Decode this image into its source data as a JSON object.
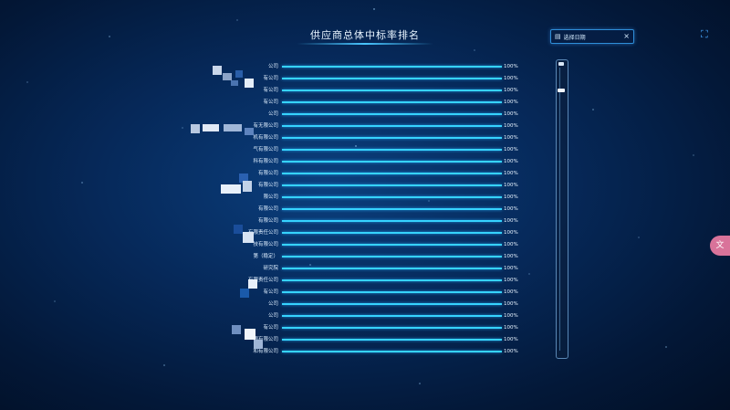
{
  "chart_data": {
    "type": "bar",
    "orientation": "horizontal",
    "title": "供应商总体中标率排名",
    "categories": [
      "公司",
      "有公司",
      "有公司",
      "有公司",
      "公司",
      "有无限公司",
      "机有限公司",
      "气有限公司",
      "科有限公司",
      "有限公司",
      "有限公司",
      "限公司",
      "有限公司",
      "有限公司",
      "有限责任公司",
      "技有限公司",
      "第（稳定）",
      "研究院",
      "有限责任公司",
      "有公司",
      "公司",
      "公司",
      "有公司",
      "限有限公司",
      "和有限公司"
    ],
    "values": [
      100,
      100,
      100,
      100,
      100,
      100,
      100,
      100,
      100,
      100,
      100,
      100,
      100,
      100,
      100,
      100,
      100,
      100,
      100,
      100,
      100,
      100,
      100,
      100,
      100
    ],
    "value_labels": [
      "100%",
      "100%",
      "100%",
      "100%",
      "100%",
      "100%",
      "100%",
      "100%",
      "100%",
      "100%",
      "100%",
      "100%",
      "100%",
      "100%",
      "100%",
      "100%",
      "100%",
      "100%",
      "100%",
      "100%",
      "100%",
      "100%",
      "100%",
      "100%",
      "100%"
    ],
    "xlim": [
      0,
      100
    ],
    "bar_color": "#1ea7ef",
    "grid": false,
    "legend": "none"
  },
  "date_picker": {
    "icon": "calendar-icon",
    "placeholder": "选择日期",
    "clear_icon": "close-icon",
    "clear_glyph": "×"
  },
  "fullscreen": {
    "icon": "fullscreen-icon",
    "glyph": "⛶"
  },
  "side_tab": {
    "icon": "translate-icon",
    "glyph": "文"
  }
}
